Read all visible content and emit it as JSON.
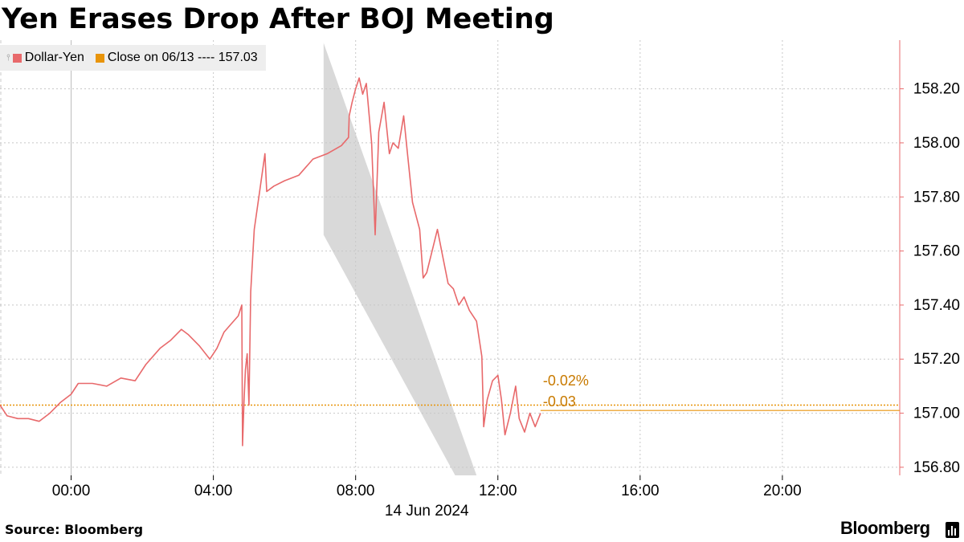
{
  "title": "Yen Erases Drop After BOJ Meeting",
  "legend": {
    "series_label": "Dollar-Yen",
    "series_color": "#e8696b",
    "close_label": "Close on 06/13 ---- 157.03",
    "close_color": "#e8940a"
  },
  "source": "Source: Bloomberg",
  "brand": "Bloomberg",
  "chart_data": {
    "type": "line",
    "title": "Yen Erases Drop After BOJ Meeting",
    "date_label": "14 Jun 2024",
    "x_ticks": [
      "00:00",
      "04:00",
      "08:00",
      "12:00",
      "16:00",
      "20:00"
    ],
    "y_ticks": [
      "156.80",
      "157.00",
      "157.20",
      "157.40",
      "157.60",
      "157.80",
      "158.00",
      "158.20"
    ],
    "ylim": [
      156.77,
      158.38
    ],
    "xlim_hours": [
      -2.0,
      23.3
    ],
    "grid": true,
    "y_axis_side": "right",
    "legend_position": "top-left",
    "reference_line": {
      "name": "Close on 06/13",
      "value": 157.03,
      "style": "dotted",
      "color": "#e8940a"
    },
    "last_value_line": {
      "value": 157.01
    },
    "annotations": [
      {
        "text": "-0.02%",
        "color": "#c87a00"
      },
      {
        "text": "-0.03",
        "color": "#c87a00"
      }
    ],
    "highlight_band": {
      "description": "downward channel",
      "top_edge": [
        [
          7.1,
          158.37
        ],
        [
          11.4,
          156.77
        ]
      ],
      "bottom_edge": [
        [
          7.1,
          157.66
        ],
        [
          10.8,
          156.77
        ]
      ]
    },
    "series": [
      {
        "name": "Dollar-Yen",
        "color": "#e8696b",
        "points": [
          [
            -2.0,
            157.03
          ],
          [
            -1.8,
            156.99
          ],
          [
            -1.5,
            156.98
          ],
          [
            -1.2,
            156.98
          ],
          [
            -0.9,
            156.97
          ],
          [
            -0.6,
            157.0
          ],
          [
            -0.3,
            157.04
          ],
          [
            0.0,
            157.07
          ],
          [
            0.2,
            157.11
          ],
          [
            0.6,
            157.11
          ],
          [
            1.0,
            157.1
          ],
          [
            1.4,
            157.13
          ],
          [
            1.8,
            157.12
          ],
          [
            2.1,
            157.18
          ],
          [
            2.5,
            157.24
          ],
          [
            2.8,
            157.27
          ],
          [
            3.1,
            157.31
          ],
          [
            3.3,
            157.29
          ],
          [
            3.6,
            157.25
          ],
          [
            3.9,
            157.2
          ],
          [
            4.1,
            157.24
          ],
          [
            4.3,
            157.3
          ],
          [
            4.5,
            157.33
          ],
          [
            4.7,
            157.36
          ],
          [
            4.8,
            157.4
          ],
          [
            4.82,
            156.88
          ],
          [
            4.86,
            157.04
          ],
          [
            4.9,
            157.16
          ],
          [
            4.95,
            157.22
          ],
          [
            5.0,
            157.03
          ],
          [
            5.05,
            157.45
          ],
          [
            5.15,
            157.68
          ],
          [
            5.3,
            157.82
          ],
          [
            5.45,
            157.96
          ],
          [
            5.5,
            157.82
          ],
          [
            5.7,
            157.84
          ],
          [
            6.0,
            157.86
          ],
          [
            6.4,
            157.88
          ],
          [
            6.8,
            157.94
          ],
          [
            7.2,
            157.96
          ],
          [
            7.6,
            157.99
          ],
          [
            7.8,
            158.02
          ],
          [
            7.82,
            158.1
          ],
          [
            7.9,
            158.15
          ],
          [
            8.0,
            158.2
          ],
          [
            8.1,
            158.24
          ],
          [
            8.2,
            158.18
          ],
          [
            8.3,
            158.22
          ],
          [
            8.45,
            158.0
          ],
          [
            8.55,
            157.66
          ],
          [
            8.65,
            158.04
          ],
          [
            8.8,
            158.15
          ],
          [
            8.95,
            157.96
          ],
          [
            9.05,
            158.0
          ],
          [
            9.2,
            157.98
          ],
          [
            9.35,
            158.1
          ],
          [
            9.45,
            157.97
          ],
          [
            9.6,
            157.78
          ],
          [
            9.8,
            157.68
          ],
          [
            9.9,
            157.5
          ],
          [
            10.0,
            157.52
          ],
          [
            10.15,
            157.6
          ],
          [
            10.3,
            157.68
          ],
          [
            10.45,
            157.58
          ],
          [
            10.6,
            157.48
          ],
          [
            10.75,
            157.46
          ],
          [
            10.9,
            157.4
          ],
          [
            11.05,
            157.43
          ],
          [
            11.2,
            157.38
          ],
          [
            11.4,
            157.34
          ],
          [
            11.55,
            157.21
          ],
          [
            11.6,
            156.95
          ],
          [
            11.7,
            157.05
          ],
          [
            11.85,
            157.12
          ],
          [
            12.0,
            157.14
          ],
          [
            12.1,
            157.05
          ],
          [
            12.2,
            156.92
          ],
          [
            12.35,
            157.0
          ],
          [
            12.5,
            157.1
          ],
          [
            12.6,
            156.98
          ],
          [
            12.75,
            156.93
          ],
          [
            12.9,
            157.0
          ],
          [
            13.05,
            156.95
          ],
          [
            13.2,
            157.0
          ]
        ]
      }
    ]
  }
}
